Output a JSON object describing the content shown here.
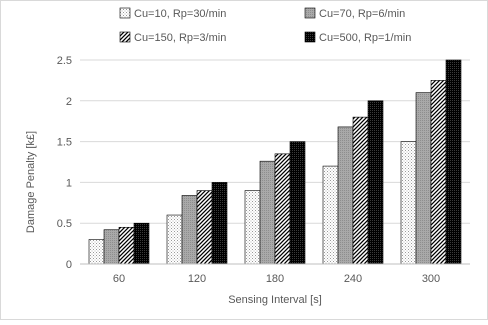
{
  "chart_data": {
    "type": "bar",
    "title": "",
    "xlabel": "Sensing Interval [s]",
    "ylabel": "Damage Penalty [k£]",
    "categories": [
      "60",
      "120",
      "180",
      "240",
      "300"
    ],
    "ylim": [
      0,
      2.5
    ],
    "yticks": [
      "0",
      "0.5",
      "1",
      "1.5",
      "2",
      "2.5"
    ],
    "grid": "horizontal",
    "legend_position": "top",
    "series": [
      {
        "name": "Cu=10, Rp=30/min",
        "pattern": "dots",
        "values": [
          0.3,
          0.6,
          0.9,
          1.2,
          1.5
        ]
      },
      {
        "name": "Cu=70, Rp=6/min",
        "pattern": "gray",
        "values": [
          0.42,
          0.84,
          1.26,
          1.68,
          2.1
        ]
      },
      {
        "name": "Cu=150, Rp=3/min",
        "pattern": "diagonal",
        "values": [
          0.45,
          0.9,
          1.35,
          1.8,
          2.25
        ]
      },
      {
        "name": "Cu=500, Rp=1/min",
        "pattern": "dark",
        "values": [
          0.5,
          1.0,
          1.5,
          2.0,
          2.5
        ]
      }
    ]
  }
}
